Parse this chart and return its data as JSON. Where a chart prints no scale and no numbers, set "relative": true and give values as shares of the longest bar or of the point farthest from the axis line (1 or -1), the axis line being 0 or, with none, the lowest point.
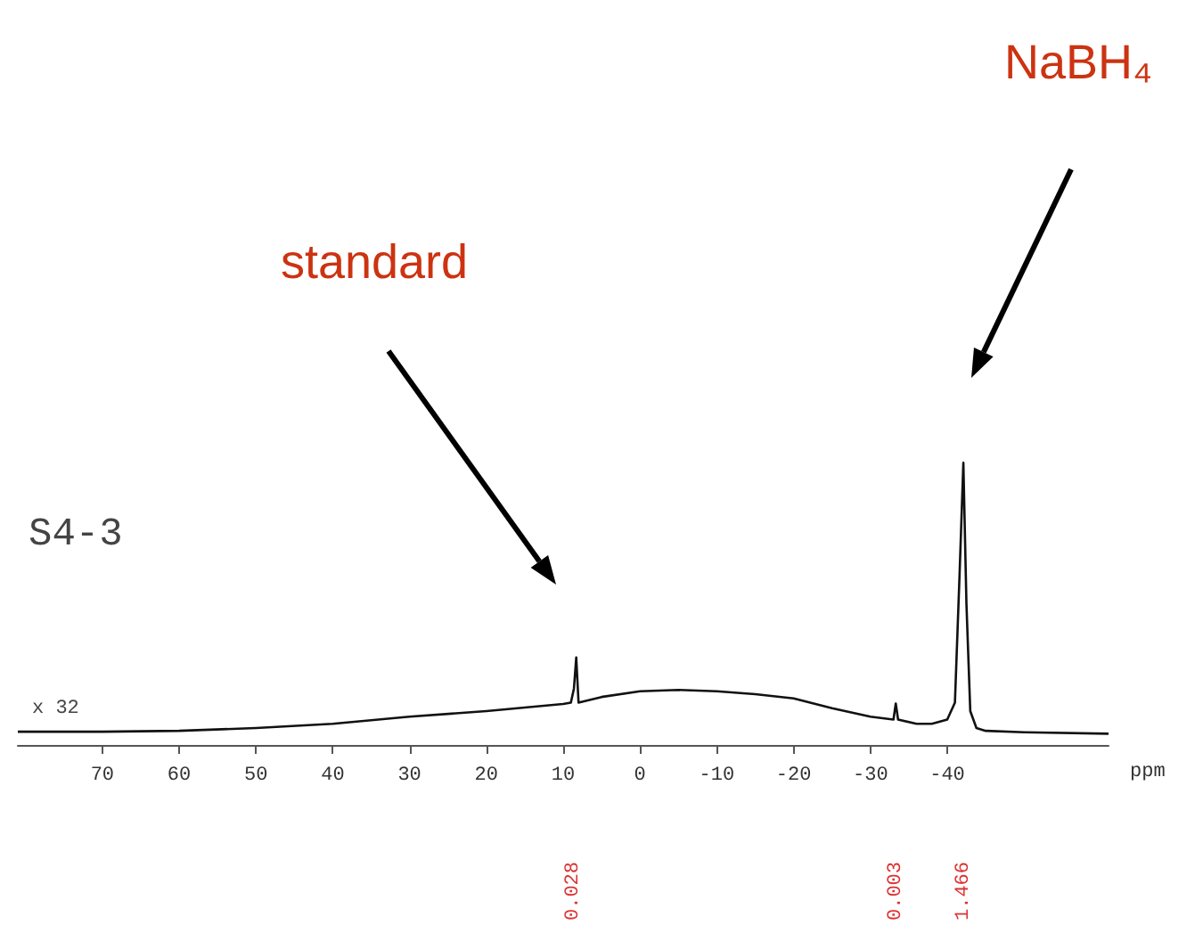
{
  "chart_data": {
    "type": "line",
    "relative": true,
    "xlabel": "ppm",
    "x": [
      81,
      70,
      60,
      50,
      40,
      30,
      20,
      10,
      9,
      8.6,
      8.3,
      8.0,
      5,
      0,
      -5,
      -10,
      -15,
      -20,
      -25,
      -30,
      -33,
      -33.3,
      -33.6,
      -36,
      -38,
      -40,
      -41,
      -41.6,
      -42.1,
      -42.5,
      -43,
      -43.8,
      -45,
      -50,
      -61
    ],
    "series": [
      {
        "color": "#111111",
        "values": [
          0.047,
          0.047,
          0.05,
          0.06,
          0.075,
          0.1,
          0.12,
          0.145,
          0.15,
          0.2,
          0.31,
          0.15,
          0.17,
          0.19,
          0.195,
          0.19,
          0.18,
          0.165,
          0.13,
          0.1,
          0.09,
          0.147,
          0.09,
          0.075,
          0.075,
          0.09,
          0.15,
          0.6,
          1,
          0.5,
          0.12,
          0.06,
          0.05,
          0.045,
          0.04
        ]
      }
    ],
    "xlim": [
      81,
      -61
    ],
    "xticks": [
      70,
      60,
      50,
      40,
      30,
      20,
      10,
      0,
      -10,
      -20,
      -30,
      -40
    ],
    "grid": false,
    "marker": "none",
    "line_style": "solid",
    "annotations": [
      "standard",
      "NaBH₄",
      "S4-3",
      "x 32",
      "0.028",
      "0.003",
      "1.466"
    ]
  }
}
